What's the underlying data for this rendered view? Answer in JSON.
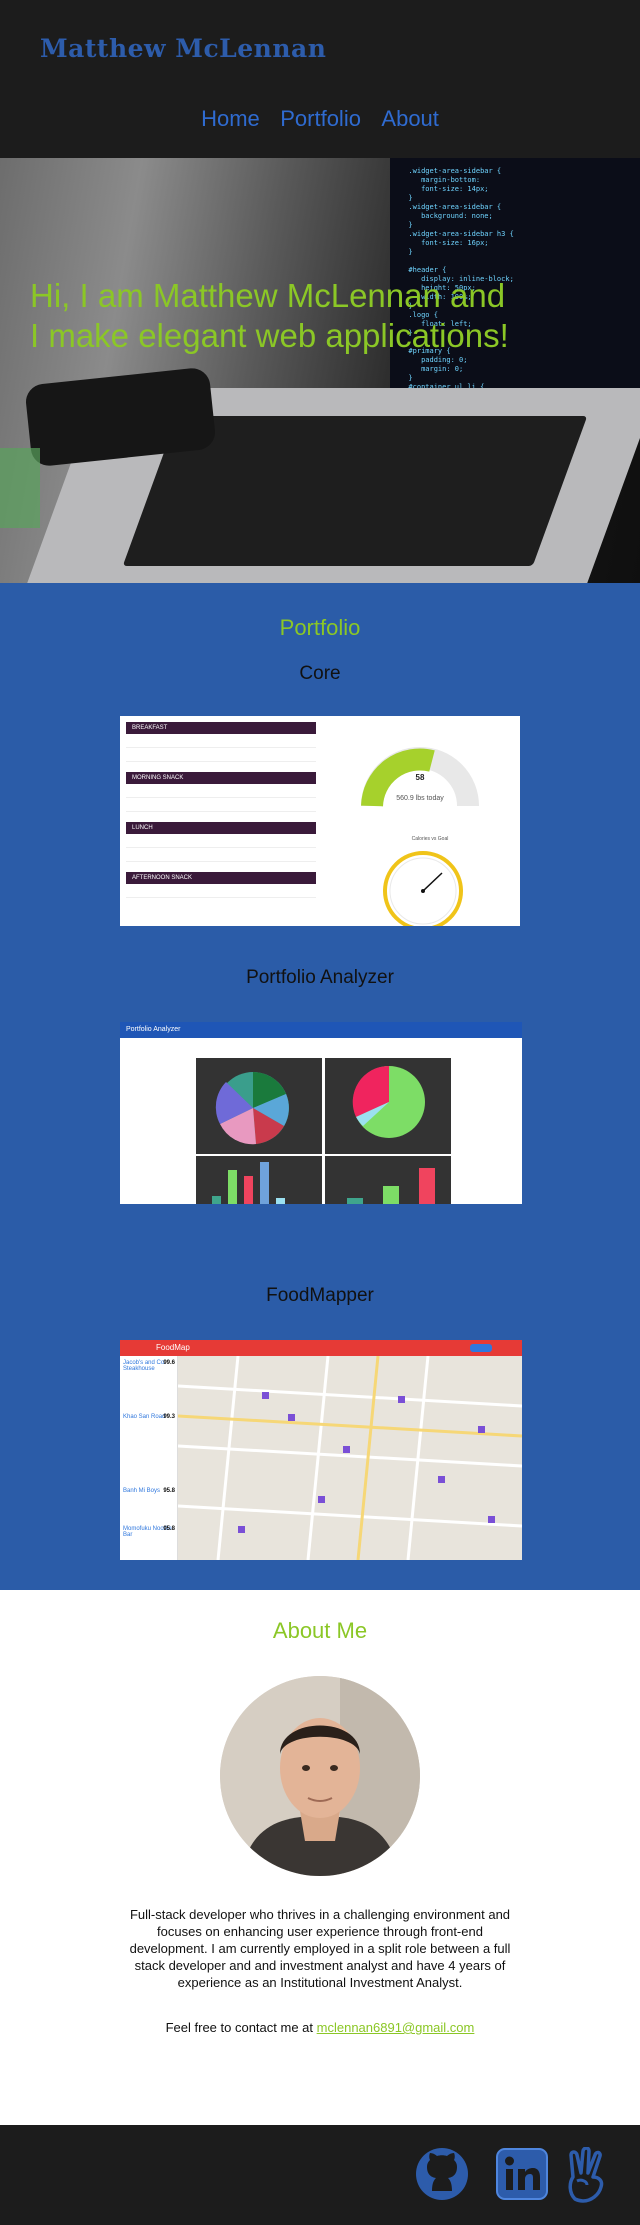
{
  "header": {
    "logo": "Matthew McLennan",
    "nav": [
      {
        "label": "Home"
      },
      {
        "label": "Portfolio"
      },
      {
        "label": "About"
      }
    ]
  },
  "hero": {
    "line1": "Hi, I am Matthew McLennan and",
    "line2": "I make elegant web applications!"
  },
  "portfolio": {
    "title": "Portfolio",
    "projects": [
      {
        "title": "Core",
        "preview": {
          "meals": [
            "BREAKFAST",
            "MORNING SNACK",
            "LUNCH",
            "AFTERNOON SNACK"
          ],
          "gauge_value": "58",
          "gauge_caption": "560.9 lbs today",
          "gauge2_title": "Calories vs Goal"
        }
      },
      {
        "title": "Portfolio Analyzer",
        "preview": {
          "app_title": "Portfolio Analyzer"
        }
      },
      {
        "title": "FoodMapper",
        "preview": {
          "app_title": "FoodMap",
          "places": [
            {
              "name": "Jacob's and Co. Steakhouse",
              "score": "99.6"
            },
            {
              "name": "Khao San Road",
              "score": "99.3"
            },
            {
              "name": "Banh Mi Boys",
              "score": "95.8"
            },
            {
              "name": "Momofuku Noodle Bar",
              "score": "95.8"
            }
          ]
        }
      }
    ]
  },
  "about": {
    "title": "About Me",
    "bio": "Full-stack developer who thrives in a challenging environment and focuses on enhancing user experience through front-end development. I am currently employed in a split role between a full stack developer and and investment analyst and have 4 years of experience as an Institutional Investment Analyst.",
    "contact_prefix": "Feel free to contact me at ",
    "email": "mclennan6891@gmail.com"
  },
  "footer": {
    "icons": [
      "github-icon",
      "linkedin-icon",
      "angellist-icon"
    ]
  },
  "colors": {
    "brand_blue": "#2d5cab",
    "accent_green": "#8bc726",
    "dark": "#1c1c1c",
    "section_blue": "#2b5ca8"
  }
}
